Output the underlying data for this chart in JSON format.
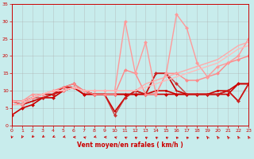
{
  "title": "",
  "xlabel": "Vent moyen/en rafales ( km/h )",
  "xlim": [
    0,
    23
  ],
  "ylim": [
    0,
    35
  ],
  "yticks": [
    0,
    5,
    10,
    15,
    20,
    25,
    30,
    35
  ],
  "xticks": [
    0,
    1,
    2,
    3,
    4,
    5,
    6,
    7,
    8,
    9,
    10,
    11,
    12,
    13,
    14,
    15,
    16,
    17,
    18,
    19,
    20,
    21,
    22,
    23
  ],
  "background_color": "#c8ecec",
  "grid_color": "#aaaaaa",
  "series": [
    {
      "x": [
        0,
        1,
        2,
        3,
        4,
        5,
        6,
        7,
        8,
        9,
        10,
        11,
        12,
        13,
        14,
        15,
        16,
        17,
        18,
        19,
        20,
        21,
        22,
        23
      ],
      "y": [
        3,
        5,
        6,
        8,
        8,
        10,
        11,
        9,
        9,
        9,
        9,
        9,
        9,
        9,
        9,
        9,
        9,
        9,
        9,
        9,
        9,
        9,
        12,
        12
      ],
      "color": "#cc0000",
      "linewidth": 1.2,
      "marker": "D",
      "markersize": 2.0,
      "alpha": 1.0
    },
    {
      "x": [
        0,
        1,
        2,
        3,
        4,
        5,
        6,
        7,
        8,
        9,
        10,
        11,
        12,
        13,
        14,
        15,
        16,
        17,
        18,
        19,
        20,
        21,
        22,
        23
      ],
      "y": [
        7,
        7,
        8,
        9,
        9,
        11,
        11,
        9,
        9,
        9,
        9,
        9,
        9,
        9,
        10,
        10,
        9,
        9,
        9,
        9,
        10,
        10,
        12,
        12
      ],
      "color": "#cc0000",
      "linewidth": 1.2,
      "marker": "s",
      "markersize": 2.0,
      "alpha": 1.0
    },
    {
      "x": [
        0,
        1,
        2,
        3,
        4,
        5,
        6,
        7,
        8,
        9,
        10,
        11,
        12,
        13,
        14,
        15,
        16,
        17,
        18,
        19,
        20,
        21,
        22,
        23
      ],
      "y": [
        7,
        6,
        7,
        8,
        9,
        10,
        11,
        10,
        9,
        9,
        4,
        8,
        10,
        9,
        15,
        15,
        10,
        9,
        9,
        9,
        9,
        10,
        7,
        12
      ],
      "color": "#cc0000",
      "linewidth": 1.2,
      "marker": "+",
      "markersize": 3.0,
      "alpha": 1.0
    },
    {
      "x": [
        0,
        1,
        2,
        3,
        4,
        5,
        6,
        7,
        8,
        9,
        10,
        11,
        12,
        13,
        14,
        15,
        16,
        17,
        18,
        19,
        20,
        21,
        22,
        23
      ],
      "y": [
        7,
        6,
        8,
        8,
        9,
        11,
        12,
        10,
        9,
        9,
        3,
        8,
        10,
        9,
        15,
        15,
        12,
        9,
        9,
        9,
        9,
        10,
        7,
        12
      ],
      "color": "#cc2222",
      "linewidth": 1.0,
      "marker": "D",
      "markersize": 2.0,
      "alpha": 0.85
    },
    {
      "x": [
        0,
        1,
        2,
        3,
        4,
        5,
        6,
        7,
        8,
        9,
        10,
        11,
        12,
        13,
        14,
        15,
        16,
        17,
        18,
        19,
        20,
        21,
        22,
        23
      ],
      "y": [
        7,
        6,
        8,
        9,
        10,
        11,
        12,
        10,
        9,
        9,
        9,
        16,
        15,
        9,
        9,
        15,
        15,
        13,
        13,
        14,
        15,
        18,
        19,
        20
      ],
      "color": "#ff8888",
      "linewidth": 1.0,
      "marker": "D",
      "markersize": 2.0,
      "alpha": 1.0
    },
    {
      "x": [
        0,
        1,
        2,
        3,
        4,
        5,
        6,
        7,
        8,
        9,
        10,
        11,
        12,
        13,
        14,
        15,
        16,
        17,
        18,
        19,
        20,
        21,
        22,
        23
      ],
      "y": [
        7,
        7,
        9,
        9,
        10,
        10,
        11,
        10,
        10,
        10,
        10,
        30,
        15,
        24,
        9,
        15,
        32,
        28,
        18,
        14,
        17,
        18,
        20,
        25
      ],
      "color": "#ff9999",
      "linewidth": 1.0,
      "marker": "D",
      "markersize": 2.0,
      "alpha": 1.0
    },
    {
      "x": [
        0,
        1,
        2,
        3,
        4,
        5,
        6,
        7,
        8,
        9,
        10,
        11,
        12,
        13,
        14,
        15,
        16,
        17,
        18,
        19,
        20,
        21,
        22,
        23
      ],
      "y": [
        6,
        6,
        8,
        9,
        10,
        10,
        11,
        10,
        10,
        10,
        10,
        10,
        10,
        12,
        13,
        14,
        15,
        16,
        17,
        18,
        19,
        21,
        23,
        24
      ],
      "color": "#ffaaaa",
      "linewidth": 1.0,
      "marker": null,
      "markersize": 0,
      "alpha": 1.0
    },
    {
      "x": [
        0,
        1,
        2,
        3,
        4,
        5,
        6,
        7,
        8,
        9,
        10,
        11,
        12,
        13,
        14,
        15,
        16,
        17,
        18,
        19,
        20,
        21,
        22,
        23
      ],
      "y": [
        7,
        7,
        8,
        9,
        10,
        10,
        11,
        10,
        10,
        10,
        10,
        10,
        10,
        11,
        12,
        13,
        14,
        15,
        16,
        17,
        18,
        20,
        22,
        23
      ],
      "color": "#ffbbbb",
      "linewidth": 1.0,
      "marker": null,
      "markersize": 0,
      "alpha": 1.0
    }
  ],
  "arrow_angles": [
    225,
    210,
    200,
    195,
    190,
    185,
    180,
    175,
    185,
    180,
    175,
    170,
    165,
    165,
    165,
    165,
    160,
    160,
    160,
    155,
    155,
    155,
    150,
    150
  ]
}
